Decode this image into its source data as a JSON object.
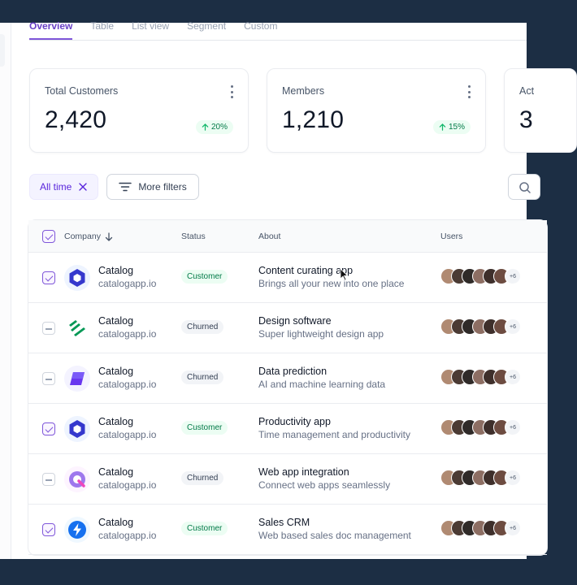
{
  "tabs": [
    "Overview",
    "Table",
    "List view",
    "Segment",
    "Custom"
  ],
  "cards": [
    {
      "title": "Total Customers",
      "value": "2,420",
      "change": "20%"
    },
    {
      "title": "Members",
      "value": "1,210",
      "change": "15%"
    },
    {
      "title": "Act",
      "value": "3"
    }
  ],
  "filters": {
    "active_label": "All time",
    "more_label": "More filters"
  },
  "table": {
    "columns": {
      "company": "Company",
      "status": "Status",
      "about": "About",
      "users": "Users"
    },
    "rows": [
      {
        "company": "Catalog",
        "domain": "catalogapp.io",
        "status": "Customer",
        "about_title": "Content curating app",
        "about_desc": "Brings all your new into one place",
        "more": "+6"
      },
      {
        "company": "Catalog",
        "domain": "catalogapp.io",
        "status": "Churned",
        "about_title": "Design software",
        "about_desc": "Super lightweight design app",
        "more": "+6"
      },
      {
        "company": "Catalog",
        "domain": "catalogapp.io",
        "status": "Churned",
        "about_title": "Data prediction",
        "about_desc": "AI and machine learning data",
        "more": "+6"
      },
      {
        "company": "Catalog",
        "domain": "catalogapp.io",
        "status": "Customer",
        "about_title": "Productivity app",
        "about_desc": "Time management and productivity",
        "more": "+6"
      },
      {
        "company": "Catalog",
        "domain": "catalogapp.io",
        "status": "Churned",
        "about_title": "Web app integration",
        "about_desc": "Connect web apps seamlessly",
        "more": "+6"
      },
      {
        "company": "Catalog",
        "domain": "catalogapp.io",
        "status": "Customer",
        "about_title": "Sales CRM",
        "about_desc": "Web based sales doc management",
        "more": "+6"
      }
    ]
  },
  "colors": {
    "accent": "#7f56d9",
    "customer_bg": "#ecfdf3",
    "customer_text": "#027a48",
    "churned_bg": "#f2f4f7",
    "page_frame": "#1c2e44"
  }
}
